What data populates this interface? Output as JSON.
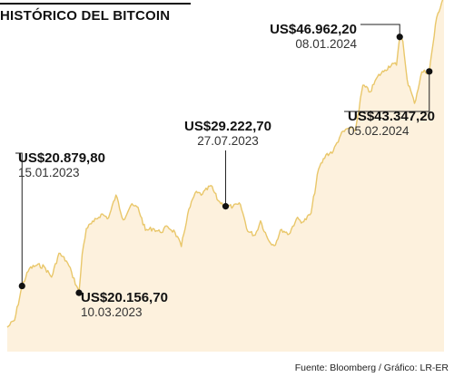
{
  "chart_data": {
    "type": "area",
    "title": "HISTÓRICO DEL BITCOIN",
    "source": "Fuente: Bloomberg / Gráfico: LR-ER",
    "colors": {
      "line": "#e9c76a",
      "area": "#fdf1dd",
      "marker": "#111111",
      "watermark": "#f7dcc0"
    },
    "icon": "bitcoin-watermark-icon",
    "x_range": [
      "2023-01-01",
      "2024-02-25"
    ],
    "y_range": [
      14000,
      49500
    ],
    "series": [
      {
        "values": [
          [
            "2023-01-01",
            16550
          ],
          [
            "2023-01-08",
            17300
          ],
          [
            "2023-01-15",
            20880
          ],
          [
            "2023-01-22",
            22700
          ],
          [
            "2023-01-29",
            23050
          ],
          [
            "2023-02-05",
            22900
          ],
          [
            "2023-02-12",
            21800
          ],
          [
            "2023-02-19",
            24300
          ],
          [
            "2023-02-26",
            23500
          ],
          [
            "2023-03-03",
            22300
          ],
          [
            "2023-03-10",
            20157
          ],
          [
            "2023-03-13",
            24200
          ],
          [
            "2023-03-17",
            26900
          ],
          [
            "2023-03-24",
            27600
          ],
          [
            "2023-03-31",
            28400
          ],
          [
            "2023-04-07",
            28000
          ],
          [
            "2023-04-14",
            30400
          ],
          [
            "2023-04-21",
            27800
          ],
          [
            "2023-04-28",
            29300
          ],
          [
            "2023-05-05",
            29100
          ],
          [
            "2023-05-12",
            26700
          ],
          [
            "2023-05-19",
            26900
          ],
          [
            "2023-05-26",
            26500
          ],
          [
            "2023-06-02",
            27100
          ],
          [
            "2023-06-09",
            26500
          ],
          [
            "2023-06-15",
            25000
          ],
          [
            "2023-06-21",
            28400
          ],
          [
            "2023-06-28",
            30600
          ],
          [
            "2023-07-05",
            30500
          ],
          [
            "2023-07-13",
            31400
          ],
          [
            "2023-07-20",
            29800
          ],
          [
            "2023-07-27",
            29223
          ],
          [
            "2023-08-03",
            29200
          ],
          [
            "2023-08-10",
            29400
          ],
          [
            "2023-08-17",
            26600
          ],
          [
            "2023-08-24",
            26200
          ],
          [
            "2023-08-29",
            27700
          ],
          [
            "2023-09-05",
            25800
          ],
          [
            "2023-09-11",
            25100
          ],
          [
            "2023-09-18",
            26800
          ],
          [
            "2023-09-25",
            26300
          ],
          [
            "2023-10-02",
            27900
          ],
          [
            "2023-10-09",
            27600
          ],
          [
            "2023-10-16",
            28500
          ],
          [
            "2023-10-23",
            33100
          ],
          [
            "2023-10-30",
            34600
          ],
          [
            "2023-11-06",
            35000
          ],
          [
            "2023-11-13",
            36700
          ],
          [
            "2023-11-20",
            37400
          ],
          [
            "2023-11-27",
            37200
          ],
          [
            "2023-12-04",
            41900
          ],
          [
            "2023-12-11",
            41200
          ],
          [
            "2023-12-18",
            42800
          ],
          [
            "2023-12-25",
            43500
          ],
          [
            "2024-01-01",
            44200
          ],
          [
            "2024-01-05",
            44000
          ],
          [
            "2024-01-08",
            46962
          ],
          [
            "2024-01-11",
            46500
          ],
          [
            "2024-01-15",
            42500
          ],
          [
            "2024-01-22",
            40000
          ],
          [
            "2024-01-29",
            43300
          ],
          [
            "2024-02-05",
            43347
          ],
          [
            "2024-02-12",
            49000
          ],
          [
            "2024-02-19",
            51300
          ]
        ]
      }
    ],
    "annotations": [
      {
        "value": "US$20.879,80",
        "date": "15.01.2023"
      },
      {
        "value": "US$20.156,70",
        "date": "10.03.2023"
      },
      {
        "value": "US$29.222,70",
        "date": "27.07.2023"
      },
      {
        "value": "US$46.962,20",
        "date": "08.01.2024"
      },
      {
        "value": "US$43.347,20",
        "date": "05.02.2024"
      }
    ]
  }
}
